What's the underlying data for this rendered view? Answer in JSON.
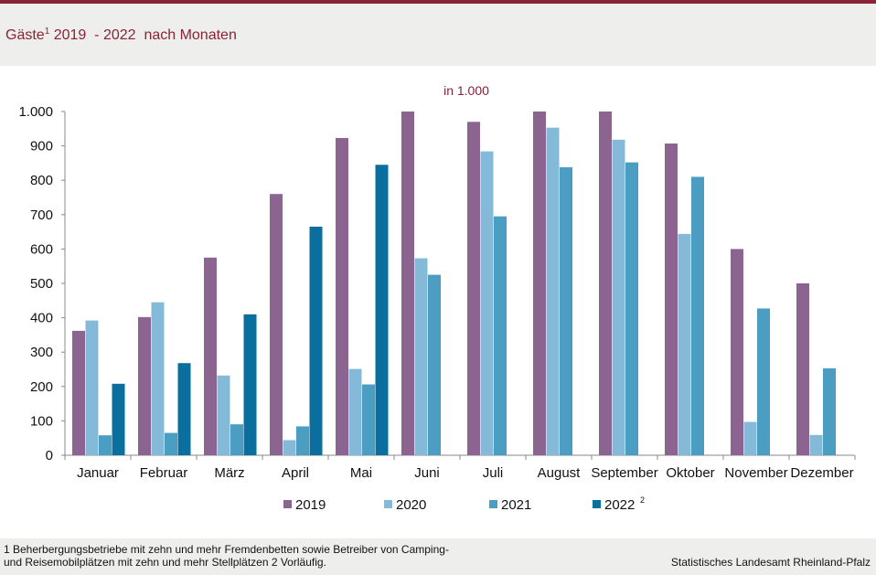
{
  "page": {
    "title_main": "Gäste",
    "title_sup": "1",
    "title_rest": " 2019  - 2022  nach Monaten",
    "footnote_line1": "1 Beherbergungsbetriebe  mit zehn und mehr Fremdenbetten  sowie Betreiber von Camping-",
    "footnote_line2": "und Reisemobilplätzen  mit zehn und mehr Stellplätzen 2 Vorläufig.",
    "source": "Statistisches Landesamt Rheinland-Pfalz"
  },
  "chart_data": {
    "type": "bar",
    "title": "Gäste 2019 - 2022 nach Monaten",
    "unit_label": "in 1.000",
    "categories": [
      "Januar",
      "Februar",
      "März",
      "April",
      "Mai",
      "Juni",
      "Juli",
      "August",
      "September",
      "Oktober",
      "November",
      "Dezember"
    ],
    "ylim": [
      0,
      1000
    ],
    "yticks": [
      0,
      100,
      200,
      300,
      400,
      500,
      600,
      700,
      800,
      900,
      1000
    ],
    "ytick_labels": [
      "0",
      "100",
      "200",
      "300",
      "400",
      "500",
      "600",
      "700",
      "800",
      "900",
      "1.000"
    ],
    "grid": false,
    "legend_position": "bottom",
    "series": [
      {
        "name": "2019",
        "sup": "",
        "color": "#8b6490",
        "values": [
          362,
          402,
          575,
          760,
          923,
          1000,
          970,
          1000,
          1000,
          907,
          600,
          500
        ]
      },
      {
        "name": "2020",
        "sup": "",
        "color": "#84bad8",
        "values": [
          392,
          445,
          232,
          44,
          251,
          573,
          884,
          953,
          918,
          644,
          97,
          59
        ]
      },
      {
        "name": "2021",
        "sup": "",
        "color": "#4b9dc2",
        "values": [
          58,
          65,
          90,
          84,
          206,
          525,
          695,
          838,
          852,
          810,
          427,
          253
        ]
      },
      {
        "name": "2022",
        "sup": "2",
        "color": "#0a6f9e",
        "values": [
          208,
          268,
          410,
          665,
          845,
          null,
          null,
          null,
          null,
          null,
          null,
          null
        ]
      }
    ]
  }
}
